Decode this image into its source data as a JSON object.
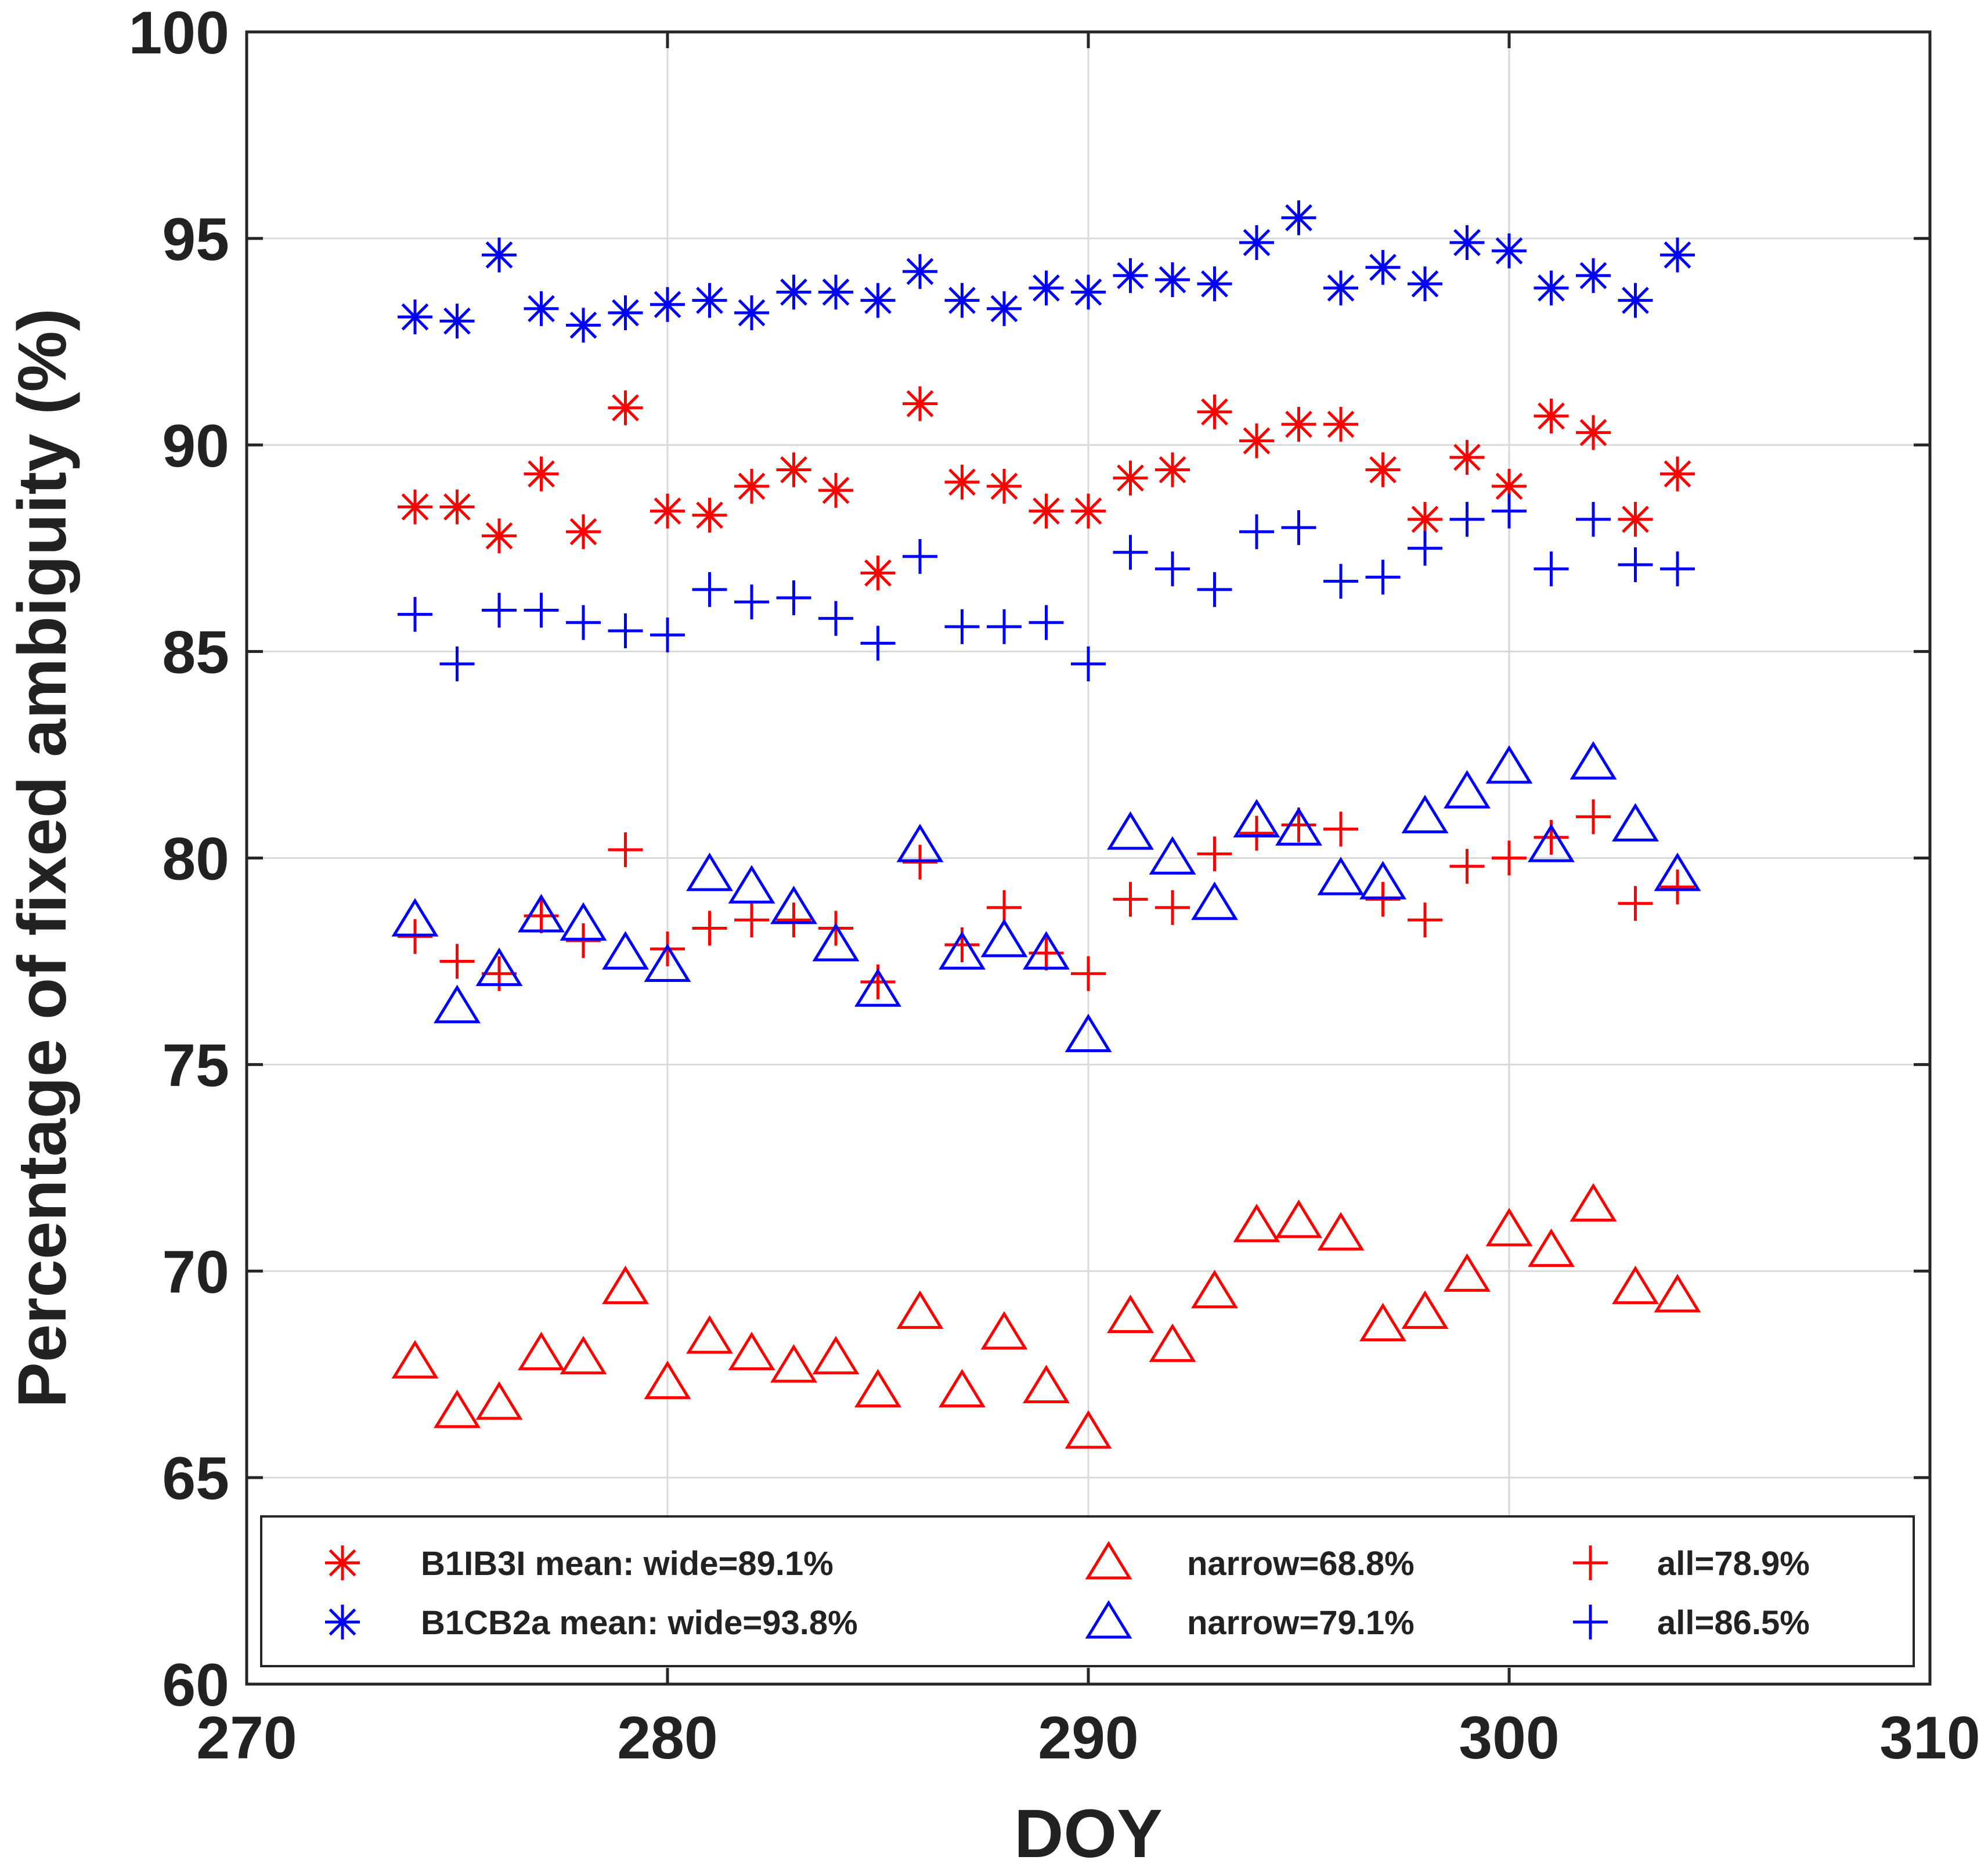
{
  "chart_data": {
    "type": "scatter",
    "title": "",
    "xlabel": "DOY",
    "ylabel": "Percentage of fixed ambiguity (%)",
    "xlim": [
      270,
      310
    ],
    "ylim": [
      60,
      100
    ],
    "xticks": [
      270,
      280,
      290,
      300,
      310
    ],
    "yticks": [
      60,
      65,
      70,
      75,
      80,
      85,
      90,
      95,
      100
    ],
    "xtick_labels": [
      "270",
      "280",
      "290",
      "300",
      "310"
    ],
    "ytick_labels": [
      "60",
      "65",
      "70",
      "75",
      "80",
      "85",
      "90",
      "95",
      "100"
    ],
    "grid": true,
    "legend_position": "bottom",
    "x": [
      274,
      275,
      276,
      277,
      278,
      279,
      280,
      281,
      282,
      283,
      284,
      285,
      286,
      287,
      288,
      289,
      290,
      291,
      292,
      293,
      294,
      295,
      296,
      297,
      298,
      299,
      300,
      301,
      302,
      303,
      304
    ],
    "series": [
      {
        "name": "B1IB3I wide",
        "legend": "B1IB3I mean: wide=89.1%",
        "color": "#ff0000",
        "marker": "asterisk",
        "values": [
          88.5,
          88.5,
          87.8,
          89.3,
          87.9,
          90.9,
          88.4,
          88.3,
          89.0,
          89.4,
          88.9,
          86.9,
          91.0,
          89.1,
          89.0,
          88.4,
          88.4,
          89.2,
          89.4,
          90.8,
          90.1,
          90.5,
          90.5,
          89.4,
          88.2,
          89.7,
          89.0,
          90.7,
          90.3,
          88.2,
          89.3
        ]
      },
      {
        "name": "B1IB3I narrow",
        "legend": "narrow=68.8%",
        "color": "#ff0000",
        "marker": "triangle",
        "values": [
          67.8,
          66.6,
          66.8,
          68.0,
          67.9,
          69.6,
          67.3,
          68.4,
          68.0,
          67.7,
          67.9,
          67.1,
          69.0,
          67.1,
          68.5,
          67.2,
          66.1,
          68.9,
          68.2,
          69.5,
          71.1,
          71.2,
          70.9,
          68.7,
          69.0,
          69.9,
          71.0,
          70.5,
          71.6,
          69.6,
          69.4
        ]
      },
      {
        "name": "B1IB3I all",
        "legend": "all=78.9%",
        "color": "#ff0000",
        "marker": "plus",
        "values": [
          78.1,
          77.5,
          77.2,
          78.6,
          78.0,
          80.2,
          77.8,
          78.3,
          78.5,
          78.5,
          78.3,
          77.0,
          79.9,
          77.9,
          78.8,
          77.7,
          77.2,
          79.0,
          78.8,
          80.1,
          80.6,
          80.8,
          80.7,
          79.0,
          78.5,
          79.8,
          80.0,
          80.5,
          81.0,
          78.9,
          79.3
        ]
      },
      {
        "name": "B1CB2a wide",
        "legend": "B1CB2a mean: wide=93.8%",
        "color": "#0000ff",
        "marker": "asterisk",
        "values": [
          93.1,
          93.0,
          94.6,
          93.3,
          92.9,
          93.2,
          93.4,
          93.5,
          93.2,
          93.7,
          93.7,
          93.5,
          94.2,
          93.5,
          93.3,
          93.8,
          93.7,
          94.1,
          94.0,
          93.9,
          94.9,
          95.5,
          93.8,
          94.3,
          93.9,
          94.9,
          94.7,
          93.8,
          94.1,
          93.5,
          94.6
        ]
      },
      {
        "name": "B1CB2a narrow",
        "legend": "narrow=79.1%",
        "color": "#0000ff",
        "marker": "triangle",
        "values": [
          78.5,
          76.4,
          77.3,
          78.6,
          78.4,
          77.7,
          77.4,
          79.6,
          79.3,
          78.8,
          77.9,
          76.8,
          80.3,
          77.7,
          78.0,
          77.7,
          75.7,
          80.6,
          80.0,
          78.9,
          80.9,
          80.7,
          79.5,
          79.4,
          81.0,
          81.6,
          82.2,
          80.3,
          82.3,
          80.8,
          79.6
        ]
      },
      {
        "name": "B1CB2a all",
        "legend": "all=86.5%",
        "color": "#0000ff",
        "marker": "plus",
        "values": [
          85.9,
          84.7,
          86.0,
          86.0,
          85.7,
          85.5,
          85.4,
          86.5,
          86.2,
          86.3,
          85.8,
          85.2,
          87.3,
          85.6,
          85.6,
          85.7,
          84.7,
          87.4,
          87.0,
          86.5,
          87.9,
          88.0,
          86.7,
          86.8,
          87.5,
          88.2,
          88.4,
          87.0,
          88.2,
          87.1,
          87.0
        ]
      }
    ]
  }
}
